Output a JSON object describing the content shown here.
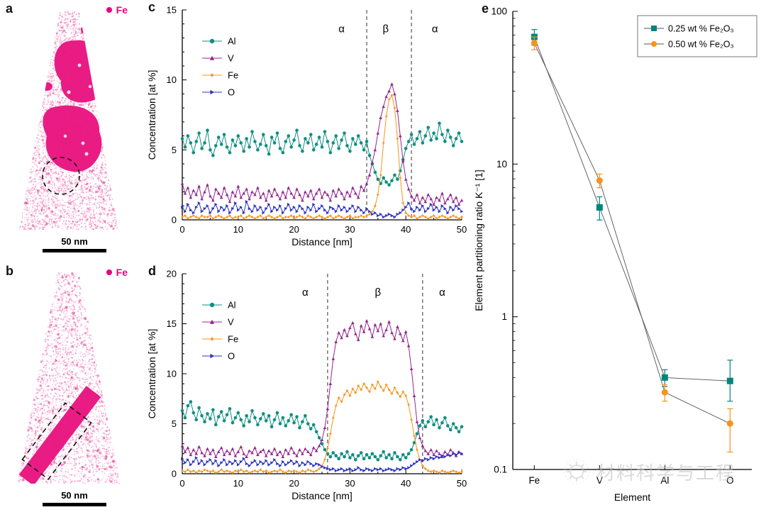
{
  "colors": {
    "fe_magenta": "#e6007e",
    "precipitate": "#e81580",
    "speckle": "#ef74b4",
    "al_teal": "#0e8f82",
    "v_purple": "#93278f",
    "fe_orange": "#f7941d",
    "o_blue": "#2e35c0",
    "series_025": "#00857d",
    "series_050": "#f7941d"
  },
  "panels": {
    "a": {
      "label": "a",
      "legend_text": "Fe",
      "scalebar_text": "50 nm"
    },
    "b": {
      "label": "b",
      "legend_text": "Fe",
      "scalebar_text": "50 nm"
    },
    "c": {
      "label": "c"
    },
    "d": {
      "label": "d"
    },
    "e": {
      "label": "e"
    }
  },
  "watermark": {
    "text": "材料科学与工程"
  },
  "chart_data": [
    {
      "id": "c",
      "type": "line",
      "xlabel": "Distance [nm]",
      "ylabel": "Concentration [at %]",
      "xlim": [
        0,
        50
      ],
      "ylim": [
        0,
        15
      ],
      "yticks": [
        0,
        5,
        10,
        15
      ],
      "xticks": [
        0,
        10,
        20,
        30,
        40,
        50
      ],
      "x": {
        "start": 0,
        "step": 0.5,
        "count": 101
      },
      "dashed_lines": [
        33,
        41
      ],
      "annotations": [
        {
          "text": "α",
          "x": 28.5,
          "y": 13.4
        },
        {
          "text": "β",
          "x": 36.4,
          "y": 13.4
        },
        {
          "text": "α",
          "x": 45.2,
          "y": 13.4
        }
      ],
      "series": [
        {
          "name": "Al",
          "color": "#0e8f82",
          "marker": "circle",
          "values": [
            5.8,
            5.2,
            6.0,
            5.5,
            4.8,
            5.6,
            6.2,
            5.1,
            5.5,
            6.4,
            5.0,
            4.6,
            5.3,
            5.9,
            5.4,
            6.1,
            5.2,
            4.8,
            5.7,
            5.3,
            6.0,
            5.5,
            4.9,
            5.8,
            5.2,
            6.3,
            5.6,
            5.0,
            5.4,
            6.1,
            5.3,
            4.7,
            5.9,
            5.5,
            6.2,
            5.1,
            4.8,
            5.6,
            6.0,
            5.2,
            5.7,
            6.4,
            5.3,
            4.9,
            5.8,
            5.5,
            6.1,
            5.0,
            5.4,
            5.9,
            5.2,
            6.3,
            5.6,
            4.8,
            5.5,
            6.0,
            5.1,
            5.7,
            6.2,
            5.3,
            4.9,
            5.8,
            5.4,
            6.0,
            5.5,
            5.0,
            5.6,
            4.6,
            4.0,
            3.4,
            2.9,
            2.6,
            3.0,
            2.7,
            2.5,
            2.8,
            3.2,
            2.9,
            3.5,
            4.3,
            5.1,
            5.6,
            6.1,
            5.4,
            5.8,
            6.3,
            5.5,
            6.0,
            6.6,
            5.7,
            6.2,
            5.8,
            6.9,
            6.1,
            5.6,
            6.4,
            5.9,
            5.3,
            5.8,
            6.2,
            5.6
          ]
        },
        {
          "name": "V",
          "color": "#93278f",
          "marker": "triangle",
          "values": [
            2.6,
            1.9,
            2.3,
            1.6,
            2.1,
            1.8,
            2.4,
            1.5,
            2.0,
            2.5,
            1.7,
            1.4,
            2.2,
            1.9,
            1.6,
            2.3,
            1.8,
            1.3,
            2.0,
            1.7,
            2.4,
            1.6,
            1.9,
            2.2,
            1.5,
            2.0,
            1.8,
            2.3,
            1.6,
            1.9,
            1.4,
            2.1,
            1.7,
            2.2,
            1.8,
            1.5,
            2.0,
            1.6,
            2.3,
            1.9,
            1.6,
            2.2,
            1.8,
            1.4,
            2.0,
            1.7,
            2.1,
            1.5,
            1.9,
            2.2,
            1.6,
            2.0,
            1.8,
            1.4,
            2.1,
            1.7,
            2.2,
            1.9,
            1.5,
            2.0,
            1.7,
            2.3,
            1.9,
            1.6,
            2.4,
            2.1,
            2.6,
            3.2,
            4.1,
            5.0,
            6.2,
            7.3,
            8.1,
            8.8,
            9.2,
            9.7,
            9.0,
            7.8,
            6.0,
            4.2,
            2.9,
            2.2,
            1.7,
            1.4,
            1.8,
            1.2,
            1.6,
            1.3,
            1.8,
            1.5,
            1.1,
            1.6,
            1.4,
            1.9,
            1.2,
            1.5,
            1.8,
            1.3,
            1.6,
            1.1,
            1.4
          ]
        },
        {
          "name": "Fe",
          "color": "#f7941d",
          "marker": "star",
          "values": [
            0.2,
            0.3,
            0.1,
            0.2,
            0.3,
            0.2,
            0.1,
            0.3,
            0.2,
            0.2,
            0.3,
            0.1,
            0.2,
            0.3,
            0.2,
            0.1,
            0.2,
            0.3,
            0.1,
            0.2,
            0.2,
            0.3,
            0.1,
            0.2,
            0.3,
            0.2,
            0.1,
            0.2,
            0.3,
            0.1,
            0.2,
            0.3,
            0.2,
            0.1,
            0.2,
            0.3,
            0.1,
            0.2,
            0.2,
            0.3,
            0.1,
            0.2,
            0.3,
            0.2,
            0.1,
            0.3,
            0.2,
            0.1,
            0.2,
            0.3,
            0.2,
            0.1,
            0.2,
            0.3,
            0.1,
            0.2,
            0.3,
            0.2,
            0.1,
            0.2,
            0.3,
            0.1,
            0.2,
            0.2,
            0.3,
            0.2,
            0.3,
            0.4,
            0.6,
            1.0,
            1.8,
            3.2,
            5.5,
            7.4,
            8.6,
            8.9,
            8.0,
            5.8,
            3.0,
            1.2,
            0.5,
            0.3,
            0.2,
            0.3,
            0.1,
            0.2,
            0.3,
            0.2,
            0.1,
            0.2,
            0.3,
            0.1,
            0.2,
            0.3,
            0.2,
            0.1,
            0.2,
            0.3,
            0.2,
            0.1,
            0.2
          ]
        },
        {
          "name": "O",
          "color": "#2e35c0",
          "marker": "triangle-right",
          "values": [
            0.9,
            0.6,
            1.1,
            0.7,
            0.5,
            0.9,
            1.2,
            0.6,
            0.8,
            1.0,
            0.5,
            0.8,
            1.1,
            0.6,
            0.9,
            0.7,
            1.0,
            0.5,
            0.8,
            1.2,
            0.7,
            0.9,
            0.5,
            1.3,
            0.8,
            0.6,
            1.0,
            0.7,
            0.9,
            0.5,
            0.8,
            1.1,
            0.6,
            0.9,
            0.7,
            1.0,
            0.5,
            0.8,
            1.1,
            0.7,
            0.9,
            0.6,
            1.0,
            0.8,
            0.5,
            0.9,
            0.7,
            1.1,
            0.6,
            0.8,
            1.0,
            0.7,
            0.5,
            0.9,
            0.8,
            0.6,
            1.0,
            0.7,
            0.9,
            0.6,
            0.8,
            1.0,
            0.6,
            0.9,
            0.7,
            0.5,
            0.8,
            0.6,
            0.4,
            0.5,
            0.3,
            0.4,
            0.2,
            0.3,
            0.4,
            0.3,
            0.2,
            0.4,
            0.5,
            0.7,
            0.9,
            1.2,
            0.8,
            0.6,
            0.9,
            0.7,
            1.0,
            0.6,
            0.8,
            1.1,
            0.7,
            0.9,
            0.6,
            1.0,
            0.8,
            0.5,
            0.9,
            0.7,
            1.0,
            0.8,
            0.6
          ]
        }
      ]
    },
    {
      "id": "d",
      "type": "line",
      "xlabel": "Distance [nm]",
      "ylabel": "Concentration [at %]",
      "xlim": [
        0,
        50
      ],
      "ylim": [
        0,
        20
      ],
      "yticks": [
        0,
        5,
        10,
        15,
        20
      ],
      "xticks": [
        0,
        10,
        20,
        30,
        40,
        50
      ],
      "x": {
        "start": 0,
        "step": 0.5,
        "count": 101
      },
      "dashed_lines": [
        26,
        43
      ],
      "annotations": [
        {
          "text": "α",
          "x": 22.0,
          "y": 17.8
        },
        {
          "text": "β",
          "x": 35.0,
          "y": 17.8
        },
        {
          "text": "α",
          "x": 46.5,
          "y": 17.8
        }
      ],
      "series": [
        {
          "name": "Al",
          "color": "#0e8f82",
          "marker": "circle",
          "values": [
            6.3,
            5.6,
            6.8,
            7.2,
            6.1,
            5.4,
            6.6,
            5.8,
            5.2,
            6.0,
            5.5,
            6.4,
            4.9,
            5.7,
            6.2,
            5.3,
            5.9,
            6.5,
            5.1,
            5.6,
            6.1,
            5.4,
            4.8,
            5.8,
            5.2,
            6.3,
            5.6,
            4.9,
            5.5,
            6.0,
            5.3,
            5.8,
            4.7,
            5.4,
            6.1,
            5.0,
            5.6,
            4.8,
            5.3,
            5.9,
            5.1,
            5.7,
            4.6,
            5.2,
            5.8,
            5.0,
            4.5,
            4.9,
            4.2,
            3.6,
            3.0,
            2.4,
            2.0,
            1.7,
            2.1,
            1.8,
            1.5,
            2.0,
            1.7,
            2.2,
            1.6,
            1.9,
            1.4,
            1.8,
            2.1,
            1.5,
            1.9,
            1.6,
            2.0,
            1.7,
            1.4,
            1.8,
            2.2,
            1.6,
            1.9,
            1.5,
            2.1,
            1.7,
            1.4,
            1.9,
            1.6,
            2.0,
            2.4,
            3.1,
            4.0,
            4.8,
            5.3,
            4.7,
            5.2,
            5.7,
            4.9,
            5.4,
            4.6,
            5.1,
            5.6,
            4.8,
            4.4,
            5.0,
            4.6,
            4.2,
            4.7
          ]
        },
        {
          "name": "V",
          "color": "#93278f",
          "marker": "triangle",
          "values": [
            2.8,
            2.2,
            2.6,
            1.9,
            2.4,
            2.0,
            2.7,
            2.1,
            1.8,
            2.5,
            2.0,
            2.4,
            1.7,
            2.2,
            2.6,
            1.9,
            2.3,
            2.0,
            2.5,
            1.8,
            2.2,
            2.7,
            2.0,
            1.7,
            2.3,
            2.1,
            2.6,
            1.9,
            2.2,
            2.4,
            1.8,
            2.3,
            2.0,
            2.5,
            1.9,
            2.2,
            1.7,
            2.4,
            2.0,
            2.6,
            2.1,
            1.8,
            2.4,
            2.0,
            2.5,
            2.2,
            1.9,
            2.6,
            2.3,
            2.8,
            3.4,
            4.6,
            6.5,
            9.0,
            11.5,
            13.2,
            14.1,
            13.6,
            14.4,
            13.8,
            14.6,
            15.1,
            14.0,
            13.4,
            14.8,
            14.2,
            15.3,
            14.5,
            13.7,
            14.9,
            14.3,
            15.0,
            13.8,
            14.4,
            15.2,
            14.1,
            13.5,
            14.7,
            14.0,
            13.3,
            14.2,
            12.8,
            10.5,
            7.8,
            5.2,
            3.6,
            2.8,
            2.3,
            2.0,
            2.4,
            1.9,
            2.3,
            2.0,
            1.7,
            2.2,
            1.9,
            2.4,
            2.1,
            1.8,
            2.2,
            2.0
          ]
        },
        {
          "name": "Fe",
          "color": "#f7941d",
          "marker": "star",
          "values": [
            0.3,
            0.2,
            0.4,
            0.2,
            0.3,
            0.1,
            0.3,
            0.2,
            0.4,
            0.3,
            0.2,
            0.3,
            0.1,
            0.2,
            0.4,
            0.2,
            0.3,
            0.2,
            0.1,
            0.3,
            0.2,
            0.4,
            0.2,
            0.3,
            0.1,
            0.2,
            0.3,
            0.2,
            0.4,
            0.2,
            0.3,
            0.1,
            0.2,
            0.3,
            0.2,
            0.4,
            0.2,
            0.1,
            0.3,
            0.2,
            0.3,
            0.2,
            0.1,
            0.3,
            0.2,
            0.4,
            0.3,
            0.2,
            0.3,
            0.5,
            0.8,
            1.4,
            2.5,
            4.0,
            5.6,
            6.8,
            7.6,
            7.2,
            7.9,
            8.3,
            7.8,
            8.5,
            8.1,
            8.8,
            8.4,
            9.0,
            8.6,
            8.2,
            8.9,
            8.5,
            9.2,
            8.7,
            8.3,
            8.9,
            8.4,
            8.0,
            8.6,
            8.1,
            7.7,
            8.2,
            7.8,
            6.9,
            5.4,
            3.8,
            2.4,
            1.4,
            0.8,
            0.5,
            0.3,
            0.2,
            0.3,
            0.2,
            0.1,
            0.3,
            0.2,
            0.1,
            0.2,
            0.3,
            0.2,
            0.1,
            0.2
          ]
        },
        {
          "name": "O",
          "color": "#2e35c0",
          "marker": "triangle-right",
          "values": [
            1.5,
            1.1,
            1.4,
            0.9,
            1.2,
            1.6,
            1.0,
            1.3,
            0.9,
            1.2,
            1.4,
            1.0,
            1.3,
            0.8,
            1.1,
            1.4,
            0.9,
            1.2,
            1.0,
            1.3,
            0.9,
            1.2,
            1.5,
            1.0,
            0.8,
            1.1,
            1.3,
            0.9,
            1.2,
            1.0,
            1.3,
            0.9,
            1.1,
            1.4,
            1.0,
            0.8,
            1.2,
            0.9,
            1.1,
            1.3,
            1.0,
            1.2,
            0.8,
            1.1,
            0.9,
            1.2,
            1.0,
            0.8,
            1.0,
            0.9,
            0.7,
            0.6,
            0.5,
            0.4,
            0.5,
            0.3,
            0.4,
            0.5,
            0.3,
            0.4,
            0.5,
            0.3,
            0.4,
            0.6,
            0.4,
            0.3,
            0.5,
            0.4,
            0.3,
            0.5,
            0.4,
            0.5,
            0.3,
            0.4,
            0.5,
            0.4,
            0.3,
            0.5,
            0.4,
            0.6,
            0.5,
            0.6,
            0.8,
            1.0,
            1.2,
            1.4,
            1.3,
            1.5,
            1.4,
            1.6,
            1.5,
            1.7,
            1.6,
            1.8,
            1.7,
            1.9,
            1.8,
            2.0,
            1.9,
            2.1,
            2.0
          ]
        }
      ]
    },
    {
      "id": "e",
      "type": "scatter",
      "xlabel": "Element",
      "ylabel": "Element partitioning ratio K⁻¹ [1]",
      "yscale": "log",
      "ylim": [
        0.1,
        100
      ],
      "ytick_labels": [
        "0.1",
        "1",
        "10",
        "100"
      ],
      "categories": [
        "Fe",
        "V",
        "Al",
        "O"
      ],
      "series": [
        {
          "name": "0.25 wt % Fe₂O₃",
          "color": "#00857d",
          "marker": "square",
          "values": [
            68,
            5.2,
            0.4,
            0.38
          ],
          "err_high": [
            8,
            0.9,
            0.05,
            0.14
          ],
          "err_low": [
            8,
            0.9,
            0.05,
            0.1
          ]
        },
        {
          "name": "0.50 wt % Fe₂O₃",
          "color": "#f7941d",
          "marker": "circle",
          "values": [
            62,
            7.8,
            0.32,
            0.2
          ],
          "err_high": [
            6,
            0.8,
            0.04,
            0.05
          ],
          "err_low": [
            6,
            0.8,
            0.04,
            0.07
          ]
        }
      ],
      "legend_position": "top-right"
    }
  ]
}
